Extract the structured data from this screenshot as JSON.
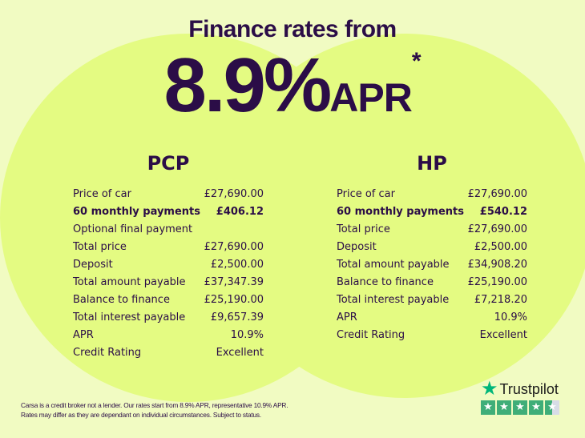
{
  "header": {
    "subtitle": "Finance rates from",
    "rate": "8.9%",
    "apr": "APR",
    "asterisk": "*"
  },
  "pcp": {
    "title": "PCP",
    "rows": [
      {
        "label": "Price of car",
        "value": "£27,690.00"
      },
      {
        "label": "60 monthly payments",
        "value": "£406.12",
        "bold": true
      },
      {
        "label": "Optional final payment",
        "value": ""
      },
      {
        "label": "Total price",
        "value": "£27,690.00"
      },
      {
        "label": "Deposit",
        "value": "£2,500.00"
      },
      {
        "label": "Total amount payable",
        "value": "£37,347.39"
      },
      {
        "label": "Balance to finance",
        "value": "£25,190.00"
      },
      {
        "label": "Total interest payable",
        "value": "£9,657.39"
      },
      {
        "label": "APR",
        "value": "10.9%"
      },
      {
        "label": "Credit Rating",
        "value": "Excellent"
      }
    ]
  },
  "hp": {
    "title": "HP",
    "rows": [
      {
        "label": "Price of car",
        "value": "£27,690.00"
      },
      {
        "label": "60 monthly payments",
        "value": "£540.12",
        "bold": true
      },
      {
        "label": "Total price",
        "value": "£27,690.00"
      },
      {
        "label": "Deposit",
        "value": "£2,500.00"
      },
      {
        "label": "Total amount payable",
        "value": "£34,908.20"
      },
      {
        "label": "Balance to finance",
        "value": "£25,190.00"
      },
      {
        "label": "Total interest payable",
        "value": "£7,218.20"
      },
      {
        "label": "APR",
        "value": "10.9%"
      },
      {
        "label": "Credit Rating",
        "value": "Excellent"
      }
    ]
  },
  "footer": {
    "line1": "Carsa is a credit broker not a lender. Our rates start from 8.9% APR, representative 10.9% APR.",
    "line2": "Rates may differ as they are dependant on individual circumstances. Subject to status."
  },
  "trustpilot": {
    "name": "Trustpilot",
    "rating_stars": 4.5,
    "icon": "star-icon",
    "brand_color": "#00b67a"
  },
  "colors": {
    "text": "#2b0d47",
    "background": "#f1fbc2",
    "circle": "#e4fb82"
  }
}
